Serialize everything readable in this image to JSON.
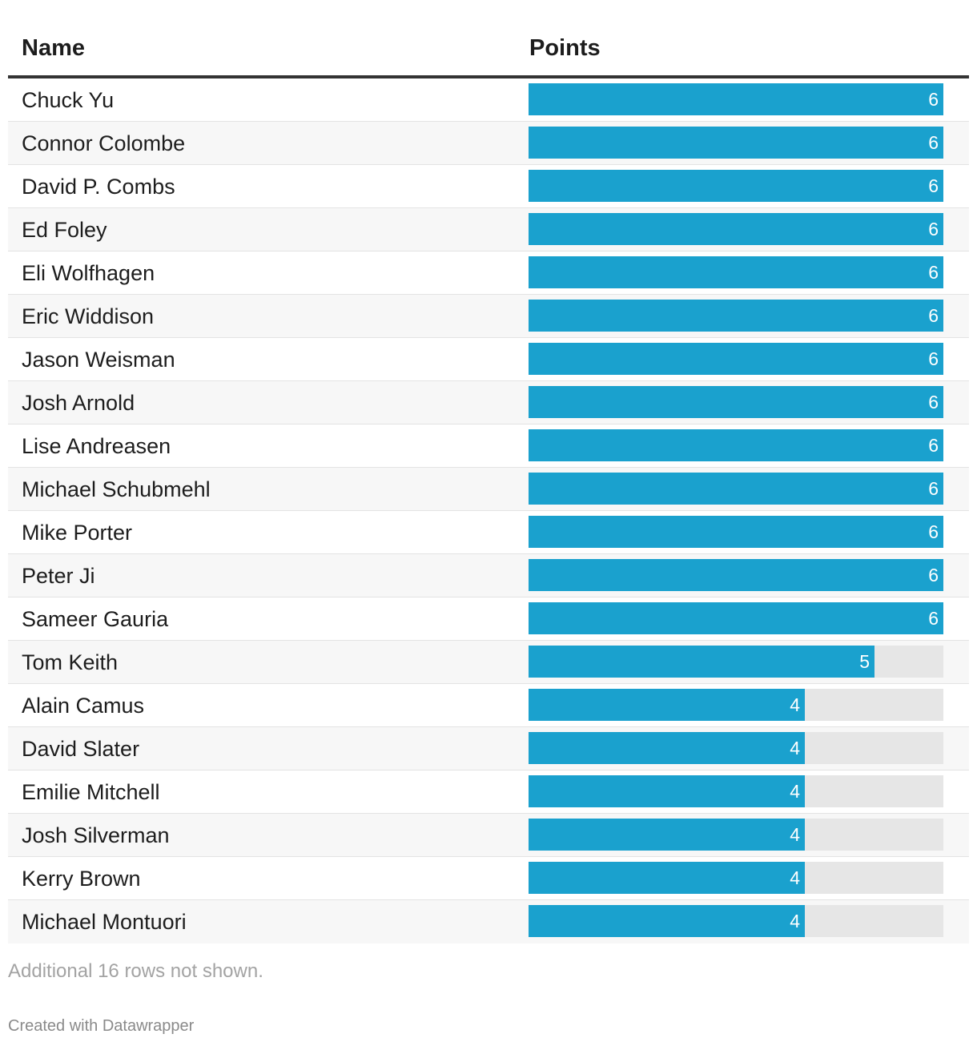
{
  "chart_data": {
    "type": "table",
    "columns": [
      "Name",
      "Points"
    ],
    "max_value": 6,
    "colors": {
      "bar": "#1aa1ce",
      "track": "#e6e6e6",
      "value_text": "#ffffff"
    },
    "rows": [
      {
        "name": "Chuck Yu",
        "points": 6
      },
      {
        "name": "Connor Colombe",
        "points": 6
      },
      {
        "name": "David P. Combs",
        "points": 6
      },
      {
        "name": "Ed Foley",
        "points": 6
      },
      {
        "name": "Eli Wolfhagen",
        "points": 6
      },
      {
        "name": "Eric Widdison",
        "points": 6
      },
      {
        "name": "Jason Weisman",
        "points": 6
      },
      {
        "name": "Josh Arnold",
        "points": 6
      },
      {
        "name": "Lise Andreasen",
        "points": 6
      },
      {
        "name": "Michael Schubmehl",
        "points": 6
      },
      {
        "name": "Mike Porter",
        "points": 6
      },
      {
        "name": "Peter Ji",
        "points": 6
      },
      {
        "name": "Sameer Gauria",
        "points": 6
      },
      {
        "name": "Tom Keith",
        "points": 5
      },
      {
        "name": "Alain Camus",
        "points": 4
      },
      {
        "name": "David Slater",
        "points": 4
      },
      {
        "name": "Emilie Mitchell",
        "points": 4
      },
      {
        "name": "Josh Silverman",
        "points": 4
      },
      {
        "name": "Kerry Brown",
        "points": 4
      },
      {
        "name": "Michael Montuori",
        "points": 4
      }
    ]
  },
  "footer": {
    "note": "Additional 16 rows not shown.",
    "credit": "Created with Datawrapper"
  }
}
